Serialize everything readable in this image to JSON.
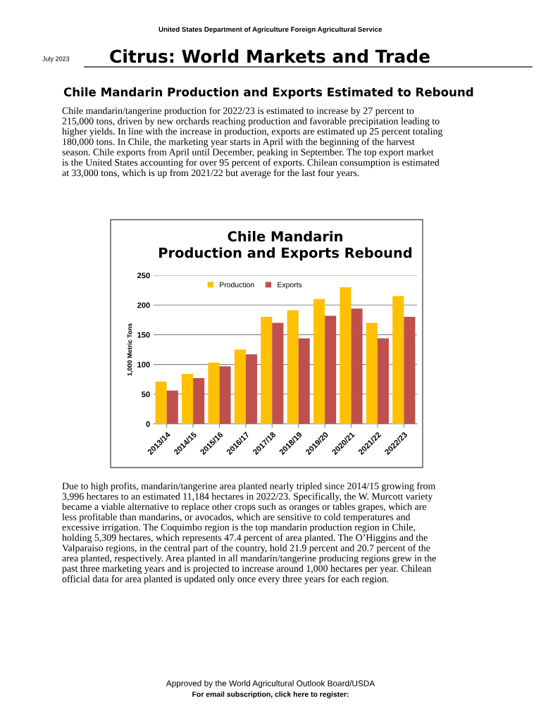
{
  "chart_data": {
    "type": "bar",
    "title": "Chile Mandarin\nProduction and Exports Rebound",
    "ylabel": "1,000 Metric Tons",
    "categories": [
      "2013/14",
      "2014/15",
      "2015/16",
      "2016/17",
      "2017/18",
      "2018/19",
      "2019/20",
      "2020/21",
      "2021/22",
      "2022/23"
    ],
    "series": [
      {
        "name": "Production",
        "color": "#ffc000",
        "values": [
          71,
          84,
          103,
          125,
          180,
          191,
          210,
          230,
          170,
          215
        ]
      },
      {
        "name": "Exports",
        "color": "#c0504d",
        "values": [
          56,
          77,
          97,
          117,
          170,
          144,
          182,
          194,
          144,
          180
        ]
      }
    ],
    "ylim": [
      0,
      250
    ],
    "yticks": [
      0,
      50,
      100,
      150,
      200,
      250
    ],
    "grid": "y",
    "legend": "top left",
    "annotations": [
      "United States Department of Agriculture Foreign Agricultural Service",
      "July 2023",
      "Citrus: World Markets and Trade",
      "Chile Mandarin Production and Exports Estimated to Rebound",
      "Chile mandarin/tangerine production for 2022/23 is estimated to increase by 27 percent to\n215,000 tons, driven by new orchards reaching production and favorable precipitation leading to\nhigher yields. In line with the increase in production, exports are estimated up 25 percent totaling\n180,000 tons. In Chile, the marketing year starts in April with the beginning of the harvest\nseason. Chile exports from April until December, peaking in September. The top export market\nis the United States accounting for over 95 percent of exports. Chilean consumption is estimated\nat 33,000 tons, which is up from 2021/22 but average for the last four years.",
      "Due to high profits, mandarin/tangerine area planted nearly tripled since 2014/15 growing from\n3,996 hectares to an estimated 11,184 hectares in 2022/23. Specifically, the W. Murcott variety\nbecame a viable alternative to replace other crops such as oranges or tables grapes, which are\nless profitable than mandarins, or avocados, which are sensitive to cold temperatures and\nexcessive irrigation. The Coquimbo region is the top mandarin production region in Chile,\nholding 5,309 hectares, which represents 47.4 percent of area planted. The O’Higgins and the\nValparaiso regions, in the central part of the country, hold 21.9 percent and 20.7 percent of the\narea planted, respectively. Area planted in all mandarin/tangerine producing regions grew in the\npast three marketing years and is projected to increase around 1,000 hectares per year. Chilean\nofficial data for area planted is updated only once every three years for each region.",
      "Approved by the World Agricultural Outlook Board/USDA",
      "For email subscription, click here to register:"
    ]
  }
}
